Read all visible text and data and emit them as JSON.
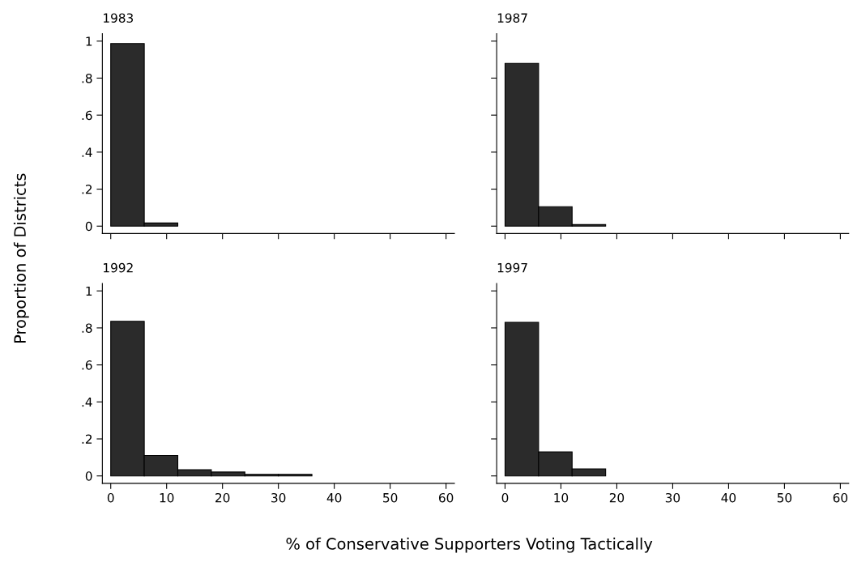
{
  "chart_data": [
    {
      "type": "histogram",
      "title": "1983",
      "ylabel": "Proportion of Districts",
      "bins": [
        0,
        6,
        12,
        18,
        24,
        30,
        36
      ],
      "values": [
        0.987,
        0.017,
        null,
        null,
        null,
        null
      ],
      "color": "#2b2b2b",
      "xlim": [
        -1.5,
        61.5
      ],
      "xticks": [
        {
          "value": 0,
          "label": null
        },
        {
          "value": 10,
          "label": null
        },
        {
          "value": 20,
          "label": null
        },
        {
          "value": 30,
          "label": null
        },
        {
          "value": 40,
          "label": null
        },
        {
          "value": 50,
          "label": null
        },
        {
          "value": 60,
          "label": null
        }
      ],
      "ylim": [
        -0.04,
        1.04
      ],
      "yticks": [
        0,
        {
          "value": 0.2,
          "label": ".2"
        },
        {
          "value": 0.4,
          "label": ".4"
        },
        {
          "value": 0.6,
          "label": ".6"
        },
        {
          "value": 0.8,
          "label": ".8"
        },
        1
      ],
      "tick_labels": "y",
      "grid": false
    },
    {
      "type": "histogram",
      "title": "1987",
      "bins": [
        0,
        6,
        12,
        18,
        24,
        30,
        36
      ],
      "values": [
        0.88,
        0.105,
        0.008,
        null,
        null,
        null
      ],
      "color": "#2b2b2b",
      "xlim": [
        -1.5,
        61.5
      ],
      "xticks": [
        {
          "value": 0,
          "label": null
        },
        {
          "value": 10,
          "label": null
        },
        {
          "value": 20,
          "label": null
        },
        {
          "value": 30,
          "label": null
        },
        {
          "value": 40,
          "label": null
        },
        {
          "value": 50,
          "label": null
        },
        {
          "value": 60,
          "label": null
        }
      ],
      "ylim": [
        -0.04,
        1.04
      ],
      "yticks": [
        {
          "value": 0,
          "label": null
        },
        {
          "value": 0.2,
          "label": null
        },
        {
          "value": 0.4,
          "label": null
        },
        {
          "value": 0.6,
          "label": null
        },
        {
          "value": 0.8,
          "label": null
        },
        {
          "value": 1,
          "label": null
        }
      ],
      "tick_labels": false,
      "grid": false
    },
    {
      "type": "histogram",
      "title": "1992",
      "xlabel": "% of Conservative Supporters Voting Tactically",
      "bins": [
        0,
        6,
        12,
        18,
        24,
        30,
        36
      ],
      "values": [
        0.836,
        0.11,
        0.034,
        0.021,
        0.008,
        0.008
      ],
      "color": "#2b2b2b",
      "xlim": [
        -1.5,
        61.5
      ],
      "xticks": [
        0,
        10,
        20,
        30,
        40,
        50,
        60
      ],
      "ylim": [
        -0.04,
        1.04
      ],
      "yticks": [
        0,
        {
          "value": 0.2,
          "label": ".2"
        },
        {
          "value": 0.4,
          "label": ".4"
        },
        {
          "value": 0.6,
          "label": ".6"
        },
        {
          "value": 0.8,
          "label": ".8"
        },
        1
      ],
      "grid": false
    },
    {
      "type": "histogram",
      "title": "1997",
      "bins": [
        0,
        6,
        12,
        18,
        24,
        30,
        36
      ],
      "values": [
        0.83,
        0.13,
        0.038,
        null,
        null,
        null
      ],
      "color": "#2b2b2b",
      "xlim": [
        -1.5,
        61.5
      ],
      "xticks": [
        0,
        10,
        20,
        30,
        40,
        50,
        60
      ],
      "ylim": [
        -0.04,
        1.04
      ],
      "yticks": [
        {
          "value": 0,
          "label": null
        },
        {
          "value": 0.2,
          "label": null
        },
        {
          "value": 0.4,
          "label": null
        },
        {
          "value": 0.6,
          "label": null
        },
        {
          "value": 0.8,
          "label": null
        },
        {
          "value": 1,
          "label": null
        }
      ],
      "tick_labels": "x",
      "grid": false
    }
  ]
}
